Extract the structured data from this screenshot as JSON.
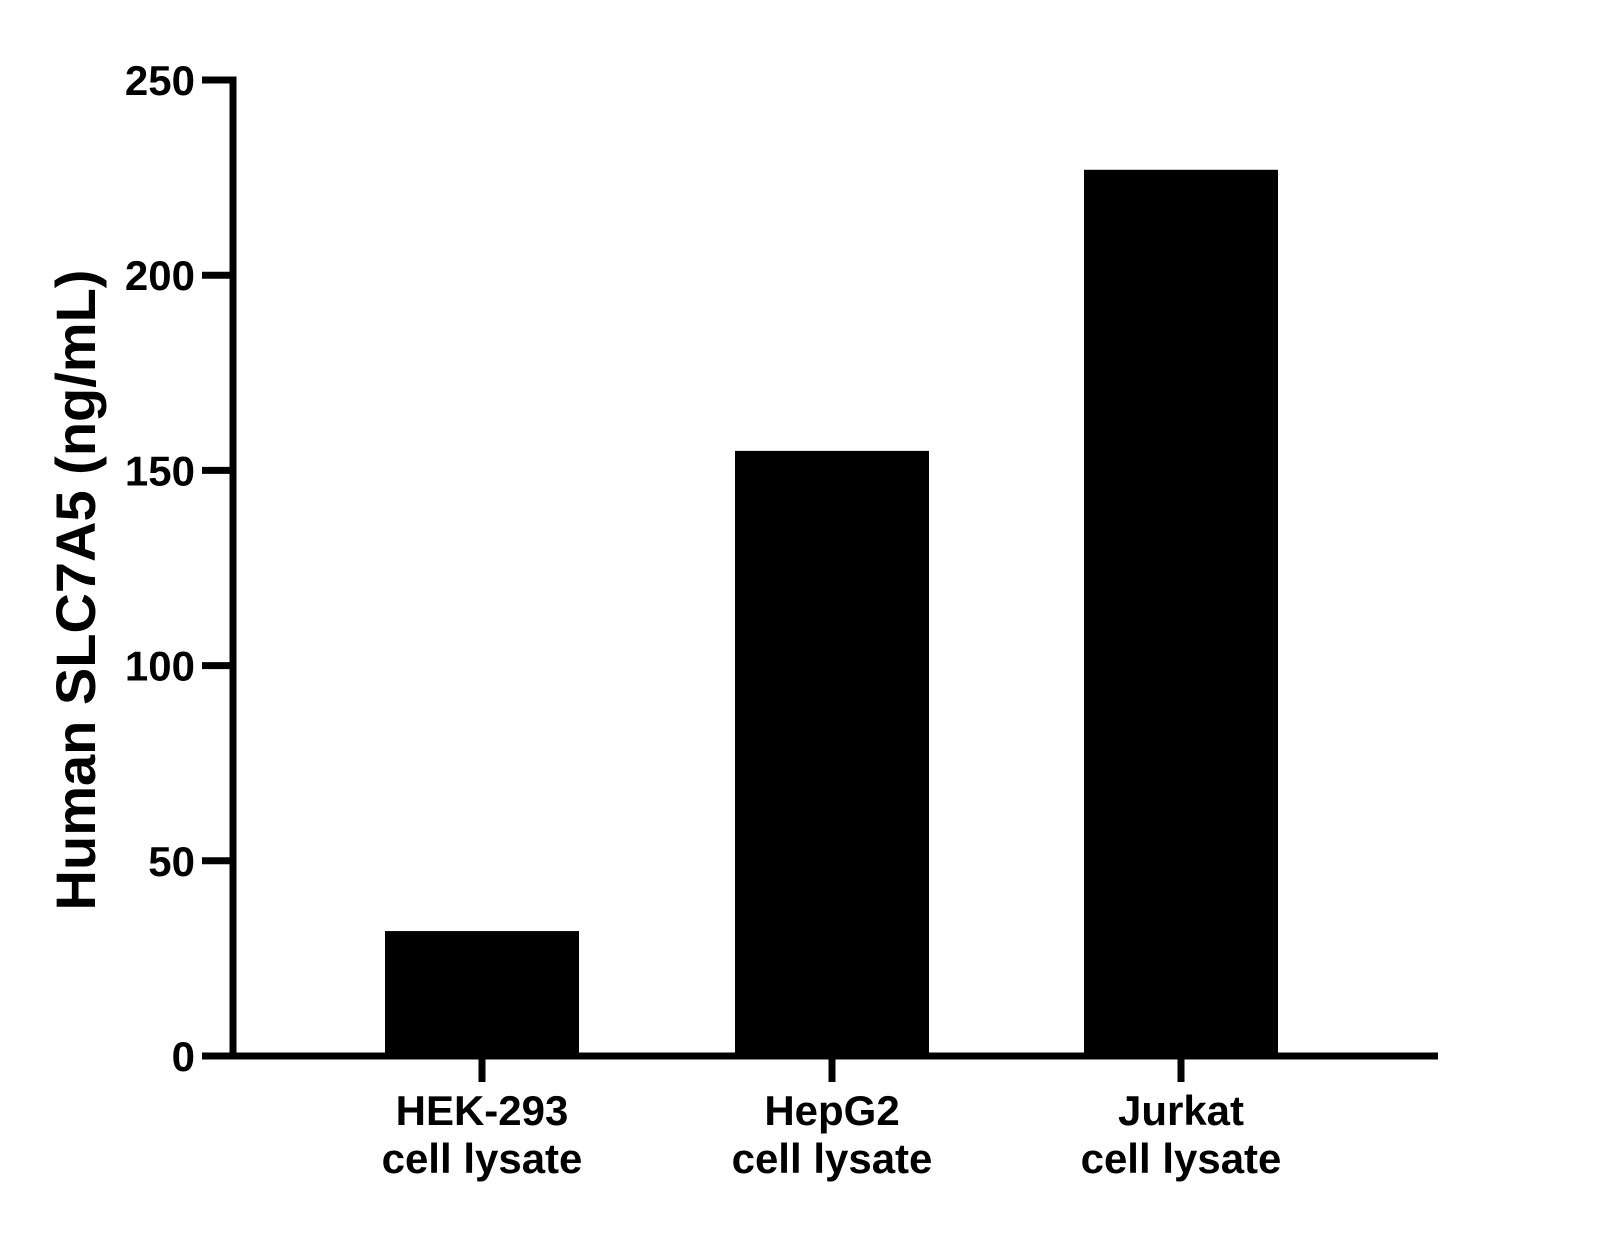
{
  "chart_data": {
    "type": "bar",
    "title": "",
    "xlabel": "",
    "ylabel": "Human SLC7A5 (ng/mL)",
    "categories": [
      [
        "HEK-293",
        "cell lysate"
      ],
      [
        "HepG2",
        "cell lysate"
      ],
      [
        "Jurkat",
        "cell lysate"
      ]
    ],
    "values": [
      32,
      155,
      227
    ],
    "ylim": [
      0,
      250
    ],
    "yticks": [
      0,
      50,
      100,
      150,
      200,
      250
    ],
    "grid": false,
    "legend": "none",
    "bar_color": "#000000",
    "axis_color": "#000000"
  }
}
